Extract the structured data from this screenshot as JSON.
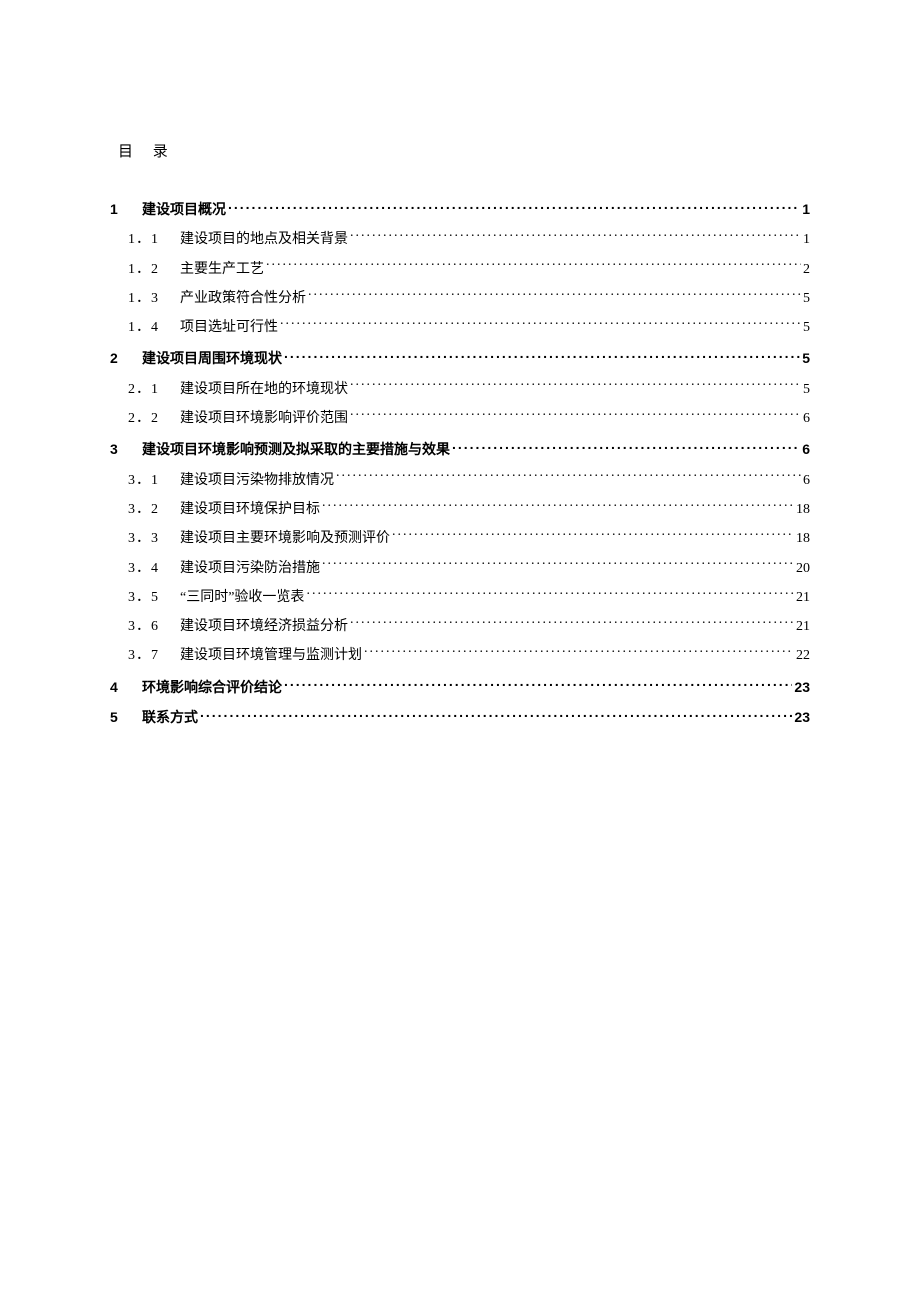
{
  "title": "目 录",
  "text_color": "#000000",
  "background_color": "#ffffff",
  "font_family_cn": "SimSun",
  "font_family_heading": "SimHei",
  "font_size_body_pt": 10.5,
  "entries": [
    {
      "level": 1,
      "num": "1",
      "text": "建设项目概况",
      "page": "1"
    },
    {
      "level": 2,
      "num": "1．1",
      "text": "建设项目的地点及相关背景",
      "page": "1"
    },
    {
      "level": 2,
      "num": "1．2",
      "text": "主要生产工艺",
      "page": "2"
    },
    {
      "level": 2,
      "num": "1．3",
      "text": "产业政策符合性分析",
      "page": "5"
    },
    {
      "level": 2,
      "num": "1．4",
      "text": "项目选址可行性",
      "page": "5"
    },
    {
      "level": 1,
      "num": "2",
      "text": "建设项目周围环境现状",
      "page": "5"
    },
    {
      "level": 2,
      "num": "2．1",
      "text": "建设项目所在地的环境现状",
      "page": "5"
    },
    {
      "level": 2,
      "num": "2．2",
      "text": "建设项目环境影响评价范围",
      "page": "6"
    },
    {
      "level": 1,
      "num": "3",
      "text": "建设项目环境影响预测及拟采取的主要措施与效果",
      "page": "6"
    },
    {
      "level": 2,
      "num": "3．1",
      "text": "建设项目污染物排放情况",
      "page": "6"
    },
    {
      "level": 2,
      "num": "3．2",
      "text": "建设项目环境保护目标",
      "page": "18"
    },
    {
      "level": 2,
      "num": "3．3",
      "text": "建设项目主要环境影响及预测评价",
      "page": "18"
    },
    {
      "level": 2,
      "num": "3．4",
      "text": "建设项目污染防治措施",
      "page": "20"
    },
    {
      "level": 2,
      "num": "3．5",
      "text": "“三同时”验收一览表",
      "page": "21"
    },
    {
      "level": 2,
      "num": "3．6",
      "text": "建设项目环境经济损益分析",
      "page": "21"
    },
    {
      "level": 2,
      "num": "3．7",
      "text": "建设项目环境管理与监测计划",
      "page": "22"
    },
    {
      "level": 1,
      "num": "4",
      "text": "环境影响综合评价结论",
      "page": "23"
    },
    {
      "level": 1,
      "num": "5",
      "text": "联系方式",
      "page": "23"
    }
  ]
}
